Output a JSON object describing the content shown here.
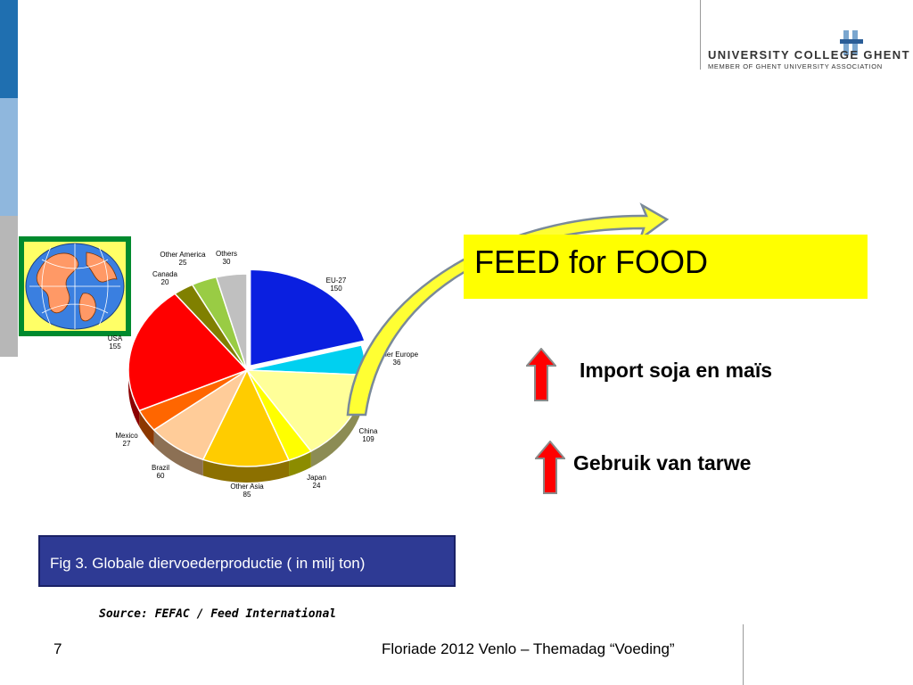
{
  "logo": {
    "line1": "UNIVERSITY COLLEGE  GHENT",
    "line2": "MEMBER OF GHENT UNIVERSITY ASSOCIATION"
  },
  "headline": "FEED for FOOD",
  "bullets": [
    {
      "text": "Import soja en maïs"
    },
    {
      "text": "Gebruik van tarwe"
    }
  ],
  "caption": "Fig 3. Globale diervoederproductie ( in milj ton)",
  "source": "Source: FEFAC / Feed International",
  "footer": {
    "page": "7",
    "text": "Floriade 2012 Venlo – Themadag “Voeding”"
  },
  "colors": {
    "feed_box": "#ffff00",
    "caption_box": "#2e3a94",
    "arrow_up": "#ff0000"
  },
  "chart_data": {
    "type": "pie",
    "title": "",
    "slices": [
      {
        "name": "EU-27",
        "value": 150,
        "color": "#0a1fe0"
      },
      {
        "name": "Other Europe",
        "value": 36,
        "color": "#00d0f0"
      },
      {
        "name": "China",
        "value": 109,
        "color": "#ffff99"
      },
      {
        "name": "Japan",
        "value": 24,
        "color": "#ffff00"
      },
      {
        "name": "Other Asia",
        "value": 85,
        "color": "#ffcc00"
      },
      {
        "name": "Brazil",
        "value": 60,
        "color": "#ffcc99"
      },
      {
        "name": "Mexico",
        "value": 27,
        "color": "#ff6600"
      },
      {
        "name": "USA",
        "value": 155,
        "color": "#ff0000"
      },
      {
        "name": "Canada",
        "value": 20,
        "color": "#808000"
      },
      {
        "name": "Other America",
        "value": 25,
        "color": "#99cc44"
      },
      {
        "name": "Others",
        "value": 30,
        "color": "#c0c0c0"
      }
    ]
  }
}
